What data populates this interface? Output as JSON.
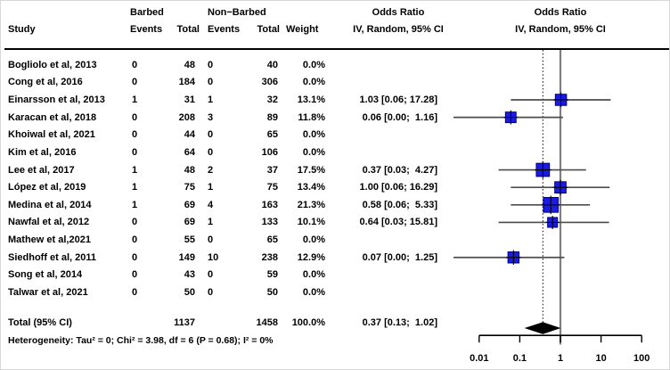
{
  "header": {
    "study": "Study",
    "group1": "Barbed",
    "group2": "Non−Barbed",
    "events1": "Events",
    "total1": "Total",
    "events2": "Events",
    "total2": "Total",
    "weight": "Weight",
    "or_col_title": "Odds Ratio",
    "or_col_subtitle": "IV, Random, 95% CI",
    "plot_title": "Odds Ratio",
    "plot_subtitle": "IV, Random, 95% CI"
  },
  "rows": [
    {
      "study": "Bogliolo et al, 2013",
      "b_events": "0",
      "b_total": "48",
      "nb_events": "0",
      "nb_total": "40",
      "weight": "0.0%",
      "ci": ""
    },
    {
      "study": "Cong et al, 2016",
      "b_events": "0",
      "b_total": "184",
      "nb_events": "0",
      "nb_total": "306",
      "weight": "0.0%",
      "ci": ""
    },
    {
      "study": "Einarsson et al, 2013",
      "b_events": "1",
      "b_total": "31",
      "nb_events": "1",
      "nb_total": "32",
      "weight": "13.1%",
      "ci": "1.03 [0.06; 17.28]"
    },
    {
      "study": "Karacan et al, 2018",
      "b_events": "0",
      "b_total": "208",
      "nb_events": "3",
      "nb_total": "89",
      "weight": "11.8%",
      "ci": "0.06 [0.00;  1.16]"
    },
    {
      "study": "Khoiwal et al, 2021",
      "b_events": "0",
      "b_total": "44",
      "nb_events": "0",
      "nb_total": "65",
      "weight": "0.0%",
      "ci": ""
    },
    {
      "study": "Kim et al, 2016",
      "b_events": "0",
      "b_total": "64",
      "nb_events": "0",
      "nb_total": "106",
      "weight": "0.0%",
      "ci": ""
    },
    {
      "study": "Lee et al, 2017",
      "b_events": "1",
      "b_total": "48",
      "nb_events": "2",
      "nb_total": "37",
      "weight": "17.5%",
      "ci": "0.37 [0.03;  4.27]"
    },
    {
      "study": "López et al, 2019",
      "b_events": "1",
      "b_total": "75",
      "nb_events": "1",
      "nb_total": "75",
      "weight": "13.4%",
      "ci": "1.00 [0.06; 16.29]"
    },
    {
      "study": "Medina et al, 2014",
      "b_events": "1",
      "b_total": "69",
      "nb_events": "4",
      "nb_total": "163",
      "weight": "21.3%",
      "ci": "0.58 [0.06;  5.33]"
    },
    {
      "study": "Nawfal et al, 2012",
      "b_events": "0",
      "b_total": "69",
      "nb_events": "1",
      "nb_total": "133",
      "weight": "10.1%",
      "ci": "0.64 [0.03; 15.81]"
    },
    {
      "study": "Mathew et al,2021",
      "b_events": "0",
      "b_total": "55",
      "nb_events": "0",
      "nb_total": "65",
      "weight": "0.0%",
      "ci": ""
    },
    {
      "study": "Siedhoff et al, 2011",
      "b_events": "0",
      "b_total": "149",
      "nb_events": "10",
      "nb_total": "238",
      "weight": "12.9%",
      "ci": "0.07 [0.00;  1.25]"
    },
    {
      "study": "Song et al, 2014",
      "b_events": "0",
      "b_total": "43",
      "nb_events": "0",
      "nb_total": "59",
      "weight": "0.0%",
      "ci": ""
    },
    {
      "study": "Talwar et al, 2021",
      "b_events": "0",
      "b_total": "50",
      "nb_events": "0",
      "nb_total": "50",
      "weight": "0.0%",
      "ci": ""
    }
  ],
  "total": {
    "label": "Total (95% CI)",
    "b_total": "1137",
    "nb_total": "1458",
    "weight": "100.0%",
    "ci": "0.37 [0.13;  1.02]"
  },
  "heterogeneity": "Heterogeneity: Tau² = 0; Chi² = 3.98, df = 6 (P = 0.68); I² = 0%",
  "chart_data": {
    "type": "forest",
    "x_scale": "log10",
    "xlim": [
      0.01,
      100
    ],
    "axis_ticks": [
      0.01,
      0.1,
      1,
      10,
      100
    ],
    "reference_line": 1,
    "overall_dashed_line": 0.37,
    "studies": [
      {
        "label": "Einarsson et al, 2013",
        "row": 3,
        "or": 1.03,
        "ci_low": 0.06,
        "ci_high": 17.28,
        "weight": 13.1,
        "clip_low": false
      },
      {
        "label": "Karacan et al, 2018",
        "row": 4,
        "or": 0.06,
        "ci_low": 0.0,
        "ci_high": 1.16,
        "weight": 11.8,
        "clip_low": true
      },
      {
        "label": "Lee et al, 2017",
        "row": 7,
        "or": 0.37,
        "ci_low": 0.03,
        "ci_high": 4.27,
        "weight": 17.5,
        "clip_low": false
      },
      {
        "label": "López et al, 2019",
        "row": 8,
        "or": 1.0,
        "ci_low": 0.06,
        "ci_high": 16.29,
        "weight": 13.4,
        "clip_low": false
      },
      {
        "label": "Medina et al, 2014",
        "row": 9,
        "or": 0.58,
        "ci_low": 0.06,
        "ci_high": 5.33,
        "weight": 21.3,
        "clip_low": false
      },
      {
        "label": "Nawfal et al, 2012",
        "row": 10,
        "or": 0.64,
        "ci_low": 0.03,
        "ci_high": 15.81,
        "weight": 10.1,
        "clip_low": false
      },
      {
        "label": "Siedhoff et al, 2011",
        "row": 12,
        "or": 0.07,
        "ci_low": 0.0,
        "ci_high": 1.25,
        "weight": 12.9,
        "clip_low": true
      }
    ],
    "diamond": {
      "or": 0.37,
      "ci_low": 0.13,
      "ci_high": 1.02
    },
    "colors": {
      "square": "#1c1ce0",
      "square_border": "#000080",
      "marker_cross": "#000000",
      "ci_line": "#4d4d4d",
      "ref_line": "#808080",
      "dashed_line": "#000000",
      "diamond": "#000000",
      "axis": "#000000"
    }
  }
}
